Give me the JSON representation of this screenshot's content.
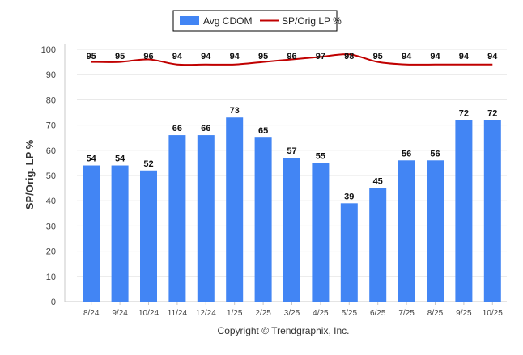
{
  "chart_data": {
    "type": "bar",
    "categories": [
      "8/24",
      "9/24",
      "10/24",
      "11/24",
      "12/24",
      "1/25",
      "2/25",
      "3/25",
      "4/25",
      "5/25",
      "6/25",
      "7/25",
      "8/25",
      "9/25",
      "10/25"
    ],
    "series": [
      {
        "name": "Avg CDOM",
        "type": "bar",
        "color": "#4285f4",
        "values": [
          54,
          54,
          52,
          66,
          66,
          73,
          65,
          57,
          55,
          39,
          45,
          56,
          56,
          72,
          72
        ]
      },
      {
        "name": "SP/Orig LP %",
        "type": "line",
        "color": "#c00000",
        "values": [
          95,
          95,
          96,
          94,
          94,
          94,
          95,
          96,
          97,
          98,
          95,
          94,
          94,
          94,
          94
        ]
      }
    ],
    "ylabel": "SP/Orig. LP %",
    "ylim": [
      0,
      100
    ],
    "yticks": [
      0,
      10,
      20,
      30,
      40,
      50,
      60,
      70,
      80,
      90,
      100
    ],
    "grid": true,
    "legend_position": "top-center"
  },
  "footer": {
    "copyright": "Copyright © Trendgraphix, Inc."
  }
}
